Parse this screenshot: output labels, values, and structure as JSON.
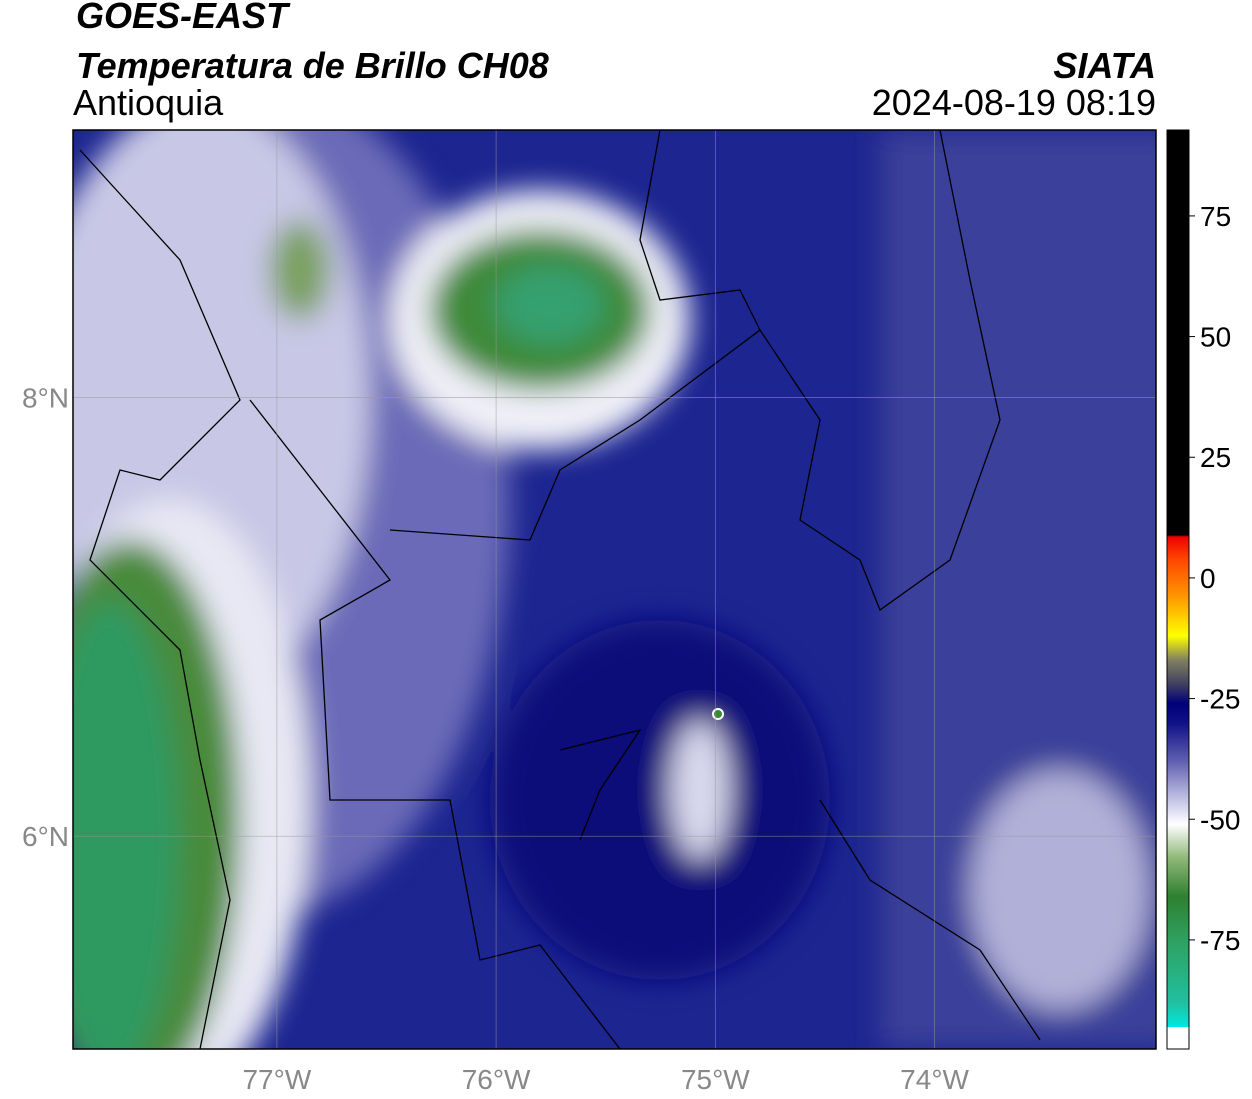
{
  "header": {
    "satellite": "GOES-EAST",
    "product": "Temperatura de Brillo CH08",
    "region": "Antioquia",
    "source": "SIATA",
    "datetime": "2024-08-19 08:19"
  },
  "map": {
    "lon_range": [
      -77.93,
      -72.99
    ],
    "lat_range": [
      5.03,
      9.22
    ],
    "lon_ticks": [
      {
        "value": -77,
        "label": "77°W"
      },
      {
        "value": -76,
        "label": "76°W"
      },
      {
        "value": -75,
        "label": "75°W"
      },
      {
        "value": -74,
        "label": "74°W"
      }
    ],
    "lat_ticks": [
      {
        "value": 8,
        "label": "8°N"
      },
      {
        "value": 6,
        "label": "6°N"
      }
    ],
    "grid": true
  },
  "colorbar": {
    "range": [
      -97.6,
      92.8
    ],
    "ticks": [
      75,
      50,
      25,
      0,
      -25,
      -50,
      -75
    ],
    "colormap": [
      {
        "value": -97.6,
        "color": "#ffffff"
      },
      {
        "value": -93,
        "color": "#ffffff"
      },
      {
        "value": -93,
        "color": "#00e8e0"
      },
      {
        "value": -88,
        "color": "#20c0a0"
      },
      {
        "value": -75,
        "color": "#30a060"
      },
      {
        "value": -66,
        "color": "#2e8030"
      },
      {
        "value": -58,
        "color": "#90b878"
      },
      {
        "value": -51,
        "color": "#ffffff"
      },
      {
        "value": -45,
        "color": "#b8b8e0"
      },
      {
        "value": -38,
        "color": "#6060b0"
      },
      {
        "value": -30,
        "color": "#101088"
      },
      {
        "value": -26,
        "color": "#00007a"
      },
      {
        "value": -22,
        "color": "#404060"
      },
      {
        "value": -17,
        "color": "#808060"
      },
      {
        "value": -12,
        "color": "#ffff00"
      },
      {
        "value": -4,
        "color": "#ff9900"
      },
      {
        "value": 4,
        "color": "#ff4400"
      },
      {
        "value": 8.5,
        "color": "#ee0000"
      },
      {
        "value": 8.9,
        "color": "#000000"
      },
      {
        "value": 92.8,
        "color": "#000000"
      }
    ]
  }
}
